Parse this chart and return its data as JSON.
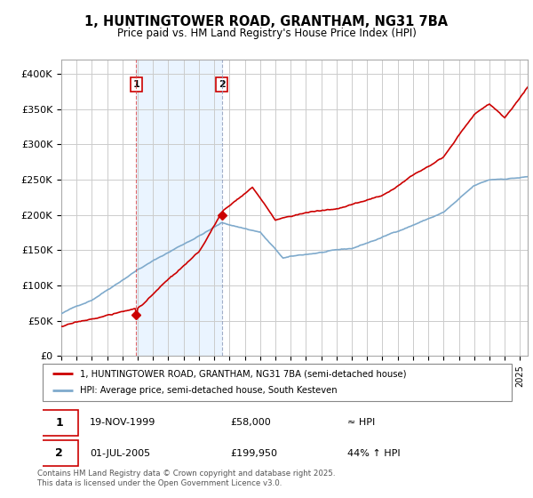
{
  "title_line1": "1, HUNTINGTOWER ROAD, GRANTHAM, NG31 7BA",
  "title_line2": "Price paid vs. HM Land Registry's House Price Index (HPI)",
  "background_color": "#ffffff",
  "plot_bg_color": "#ffffff",
  "grid_color": "#cccccc",
  "ylim": [
    0,
    420000
  ],
  "yticks": [
    0,
    50000,
    100000,
    150000,
    200000,
    250000,
    300000,
    350000,
    400000
  ],
  "ytick_labels": [
    "£0",
    "£50K",
    "£100K",
    "£150K",
    "£200K",
    "£250K",
    "£300K",
    "£350K",
    "£400K"
  ],
  "sale1_year": 1999.89,
  "sale1_price": 58000,
  "sale2_year": 2005.5,
  "sale2_price": 199950,
  "legend_line1": "1, HUNTINGTOWER ROAD, GRANTHAM, NG31 7BA (semi-detached house)",
  "legend_line2": "HPI: Average price, semi-detached house, South Kesteven",
  "table_row1": [
    "1",
    "19-NOV-1999",
    "£58,000",
    "≈ HPI"
  ],
  "table_row2": [
    "2",
    "01-JUL-2005",
    "£199,950",
    "44% ↑ HPI"
  ],
  "footer": "Contains HM Land Registry data © Crown copyright and database right 2025.\nThis data is licensed under the Open Government Licence v3.0.",
  "property_line_color": "#cc0000",
  "hpi_line_color": "#7faacc",
  "vline1_color": "#dd4444",
  "vline2_color": "#8899bb",
  "vline_shade_color": "#ddeeff",
  "box_edge_color": "#cc0000",
  "xmin": 1995,
  "xmax": 2025.5
}
